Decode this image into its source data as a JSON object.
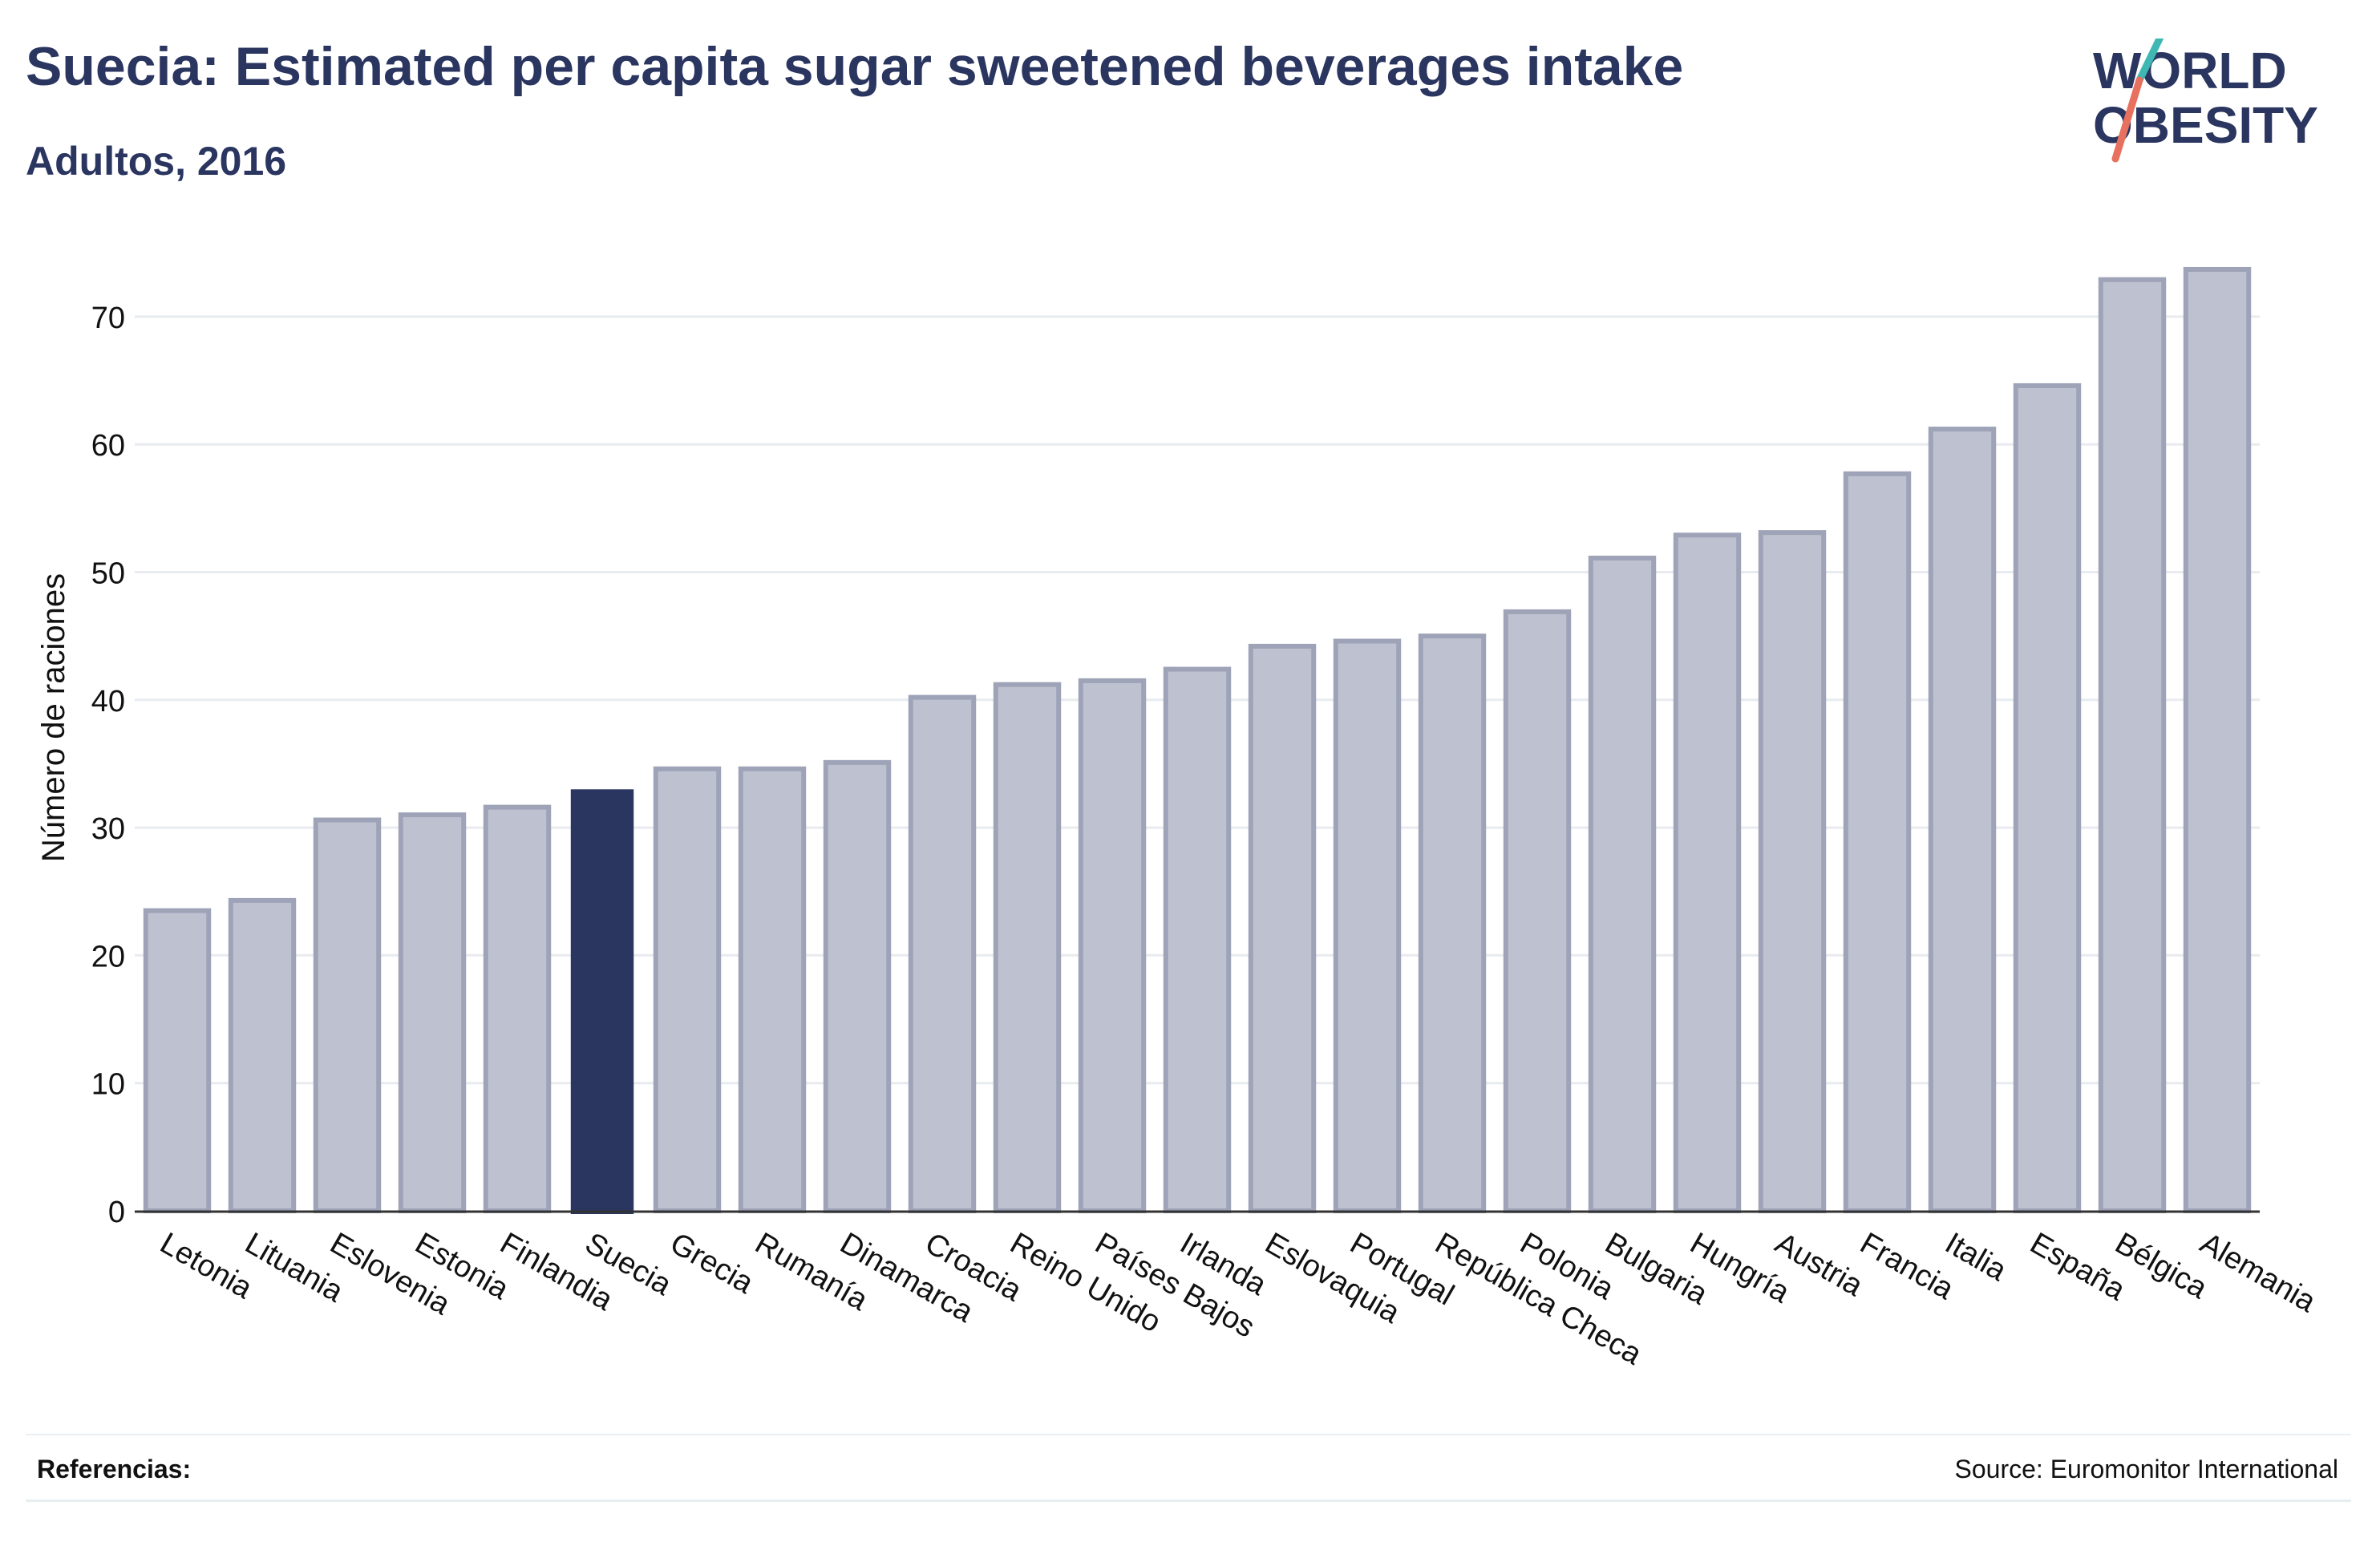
{
  "header": {
    "title": "Suecia: Estimated per capita sugar sweetened beverages intake",
    "subtitle": "Adultos, 2016"
  },
  "logo": {
    "line1": "WORLD",
    "line2": "OBESITY"
  },
  "footer": {
    "references_label": "Referencias:",
    "source": "Source: Euromonitor International"
  },
  "colors": {
    "bar": "#bec1cf",
    "bar_border": "#9ea3b8",
    "highlight": "#2a3560",
    "text": "#2a3560",
    "accent_teal": "#3fb8b3",
    "accent_coral": "#e8705e"
  },
  "chart_data": {
    "type": "bar",
    "title": "Suecia: Estimated per capita sugar sweetened beverages intake",
    "subtitle": "Adultos, 2016",
    "ylabel": "Número de raciones",
    "xlabel": "",
    "ylim": [
      0,
      75
    ],
    "yticks": [
      0,
      10,
      20,
      30,
      40,
      50,
      60,
      70
    ],
    "grid": true,
    "highlight_category": "Suecia",
    "categories": [
      "Letonia",
      "Lituania",
      "Eslovenia",
      "Estonia",
      "Finlandia",
      "Suecia",
      "Grecia",
      "Rumanía",
      "Dinamarca",
      "Croacia",
      "Reino Unido",
      "Países Bajos",
      "Irlanda",
      "Eslovaquia",
      "Portugal",
      "República Checa",
      "Polonia",
      "Bulgaria",
      "Hungría",
      "Austria",
      "Francia",
      "Italia",
      "España",
      "Bélgica",
      "Alemania"
    ],
    "values": [
      23.5,
      24.3,
      30.6,
      31.0,
      31.6,
      33.0,
      34.6,
      34.6,
      35.1,
      40.2,
      41.2,
      41.5,
      42.4,
      44.2,
      44.6,
      45.0,
      46.9,
      51.1,
      52.9,
      53.1,
      57.7,
      61.2,
      64.6,
      72.9,
      73.7
    ]
  }
}
